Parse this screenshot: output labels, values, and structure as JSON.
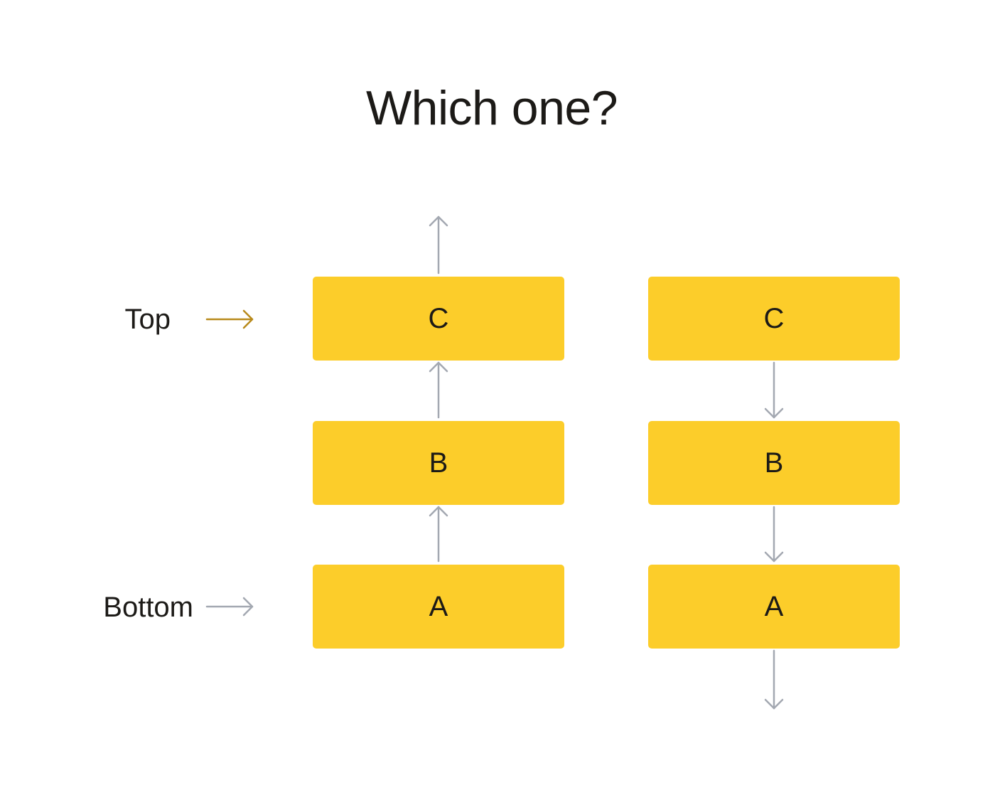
{
  "title": "Which one?",
  "labels": {
    "top": "Top",
    "bottom": "Bottom"
  },
  "stacks": [
    {
      "name": "upward-stack",
      "direction": "up",
      "boxes": [
        "C",
        "B",
        "A"
      ]
    },
    {
      "name": "downward-stack",
      "direction": "down",
      "boxes": [
        "C",
        "B",
        "A"
      ]
    }
  ],
  "colors": {
    "box": "#fccd2a",
    "text": "#1c1a17",
    "arrow_gray": "#a3a8b1",
    "arrow_top": "#b88a1b"
  }
}
